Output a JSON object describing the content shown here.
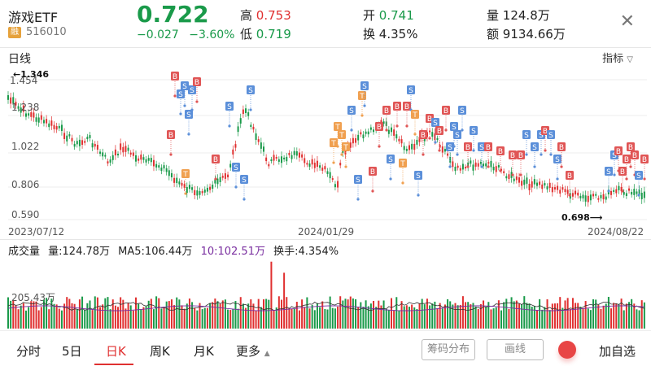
{
  "header": {
    "name": "游戏ETF",
    "badge": "融",
    "code": "516010",
    "price": "0.722",
    "change": "−0.027",
    "change_pct": "−3.60%",
    "high_label": "高",
    "high": "0.753",
    "low_label": "低",
    "low": "0.719",
    "open_label": "开",
    "open": "0.741",
    "turnover_label": "换",
    "turnover": "4.35%",
    "volume_label": "量",
    "volume": "124.8万",
    "amount_label": "额",
    "amount": "9134.66万",
    "close_icon": "close-icon"
  },
  "kline": {
    "label": "日线",
    "indicator": "指标",
    "max_marker": "1.346",
    "min_marker": "0.698",
    "y_ticks": [
      "1.454",
      "1.238",
      "1.022",
      "0.806",
      "0.590"
    ],
    "x_ticks": [
      "2023/07/12",
      "2024/01/29",
      "2024/08/22"
    ]
  },
  "volume": {
    "title": "成交量",
    "amount": "量:124.78万",
    "ma5": "MA5:106.44万",
    "ma10": "10:102.51万",
    "turnover": "换手:4.354%",
    "scale": "205.43万"
  },
  "tabs": [
    {
      "label": "分时"
    },
    {
      "label": "5日"
    },
    {
      "label": "日K"
    },
    {
      "label": "周K"
    },
    {
      "label": "月K"
    },
    {
      "label": "更多"
    }
  ],
  "buttons": {
    "chips": "筹码分布",
    "draw": "画线",
    "add": "加自选"
  },
  "colors": {
    "up": "#e03030",
    "down": "#1a9a4a",
    "buy_marker": "#e05555",
    "sell_marker": "#5b8fd9",
    "t_marker": "#f0a050"
  }
}
